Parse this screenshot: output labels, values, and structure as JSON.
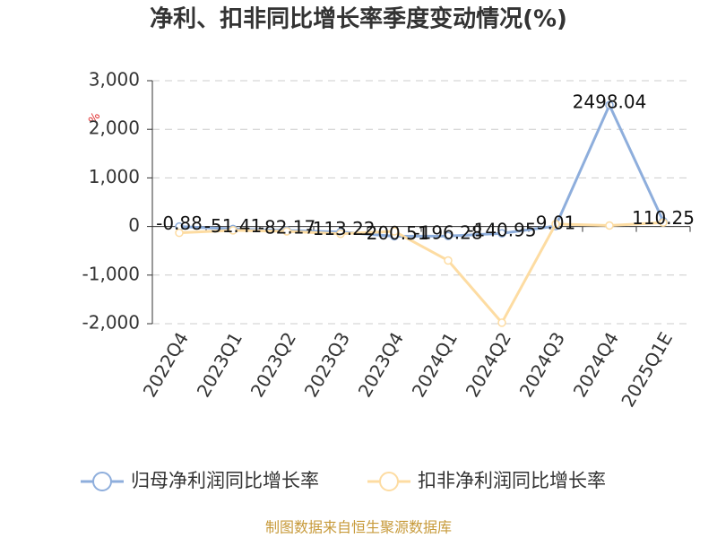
{
  "chart_data": {
    "type": "line",
    "title": "净利、扣非同比增长率季度变动情况(%)",
    "y_label": "%",
    "source": "制图数据来自恒生聚源数据库",
    "categories": [
      "2022Q4",
      "2023Q1",
      "2023Q2",
      "2023Q3",
      "2023Q4",
      "2024Q1",
      "2024Q2",
      "2024Q3",
      "2024Q4",
      "2025Q1E"
    ],
    "series": [
      {
        "name": "归母净利润同比增长率",
        "color": "#8eaedc",
        "values": [
          -0.88,
          -51.41,
          -82.17,
          -113.22,
          -200.51,
          -196.28,
          -140.95,
          9.01,
          2498.04,
          110.25
        ],
        "show_labels": true
      },
      {
        "name": "扣非净利润同比增长率",
        "color": "#fddca2",
        "values": [
          -130,
          -80,
          -100,
          -150,
          -100,
          -700,
          -1980,
          50,
          20,
          80
        ],
        "show_labels": false
      }
    ],
    "ylim": [
      -2000,
      3000
    ],
    "yticks": [
      {
        "value": -2000,
        "label": "-2,000"
      },
      {
        "value": -1000,
        "label": "-1,000"
      },
      0,
      {
        "value": 1000,
        "label": "1,000"
      },
      {
        "value": 2000,
        "label": "2,000"
      },
      {
        "value": 3000,
        "label": "3,000"
      }
    ],
    "grid": true
  }
}
